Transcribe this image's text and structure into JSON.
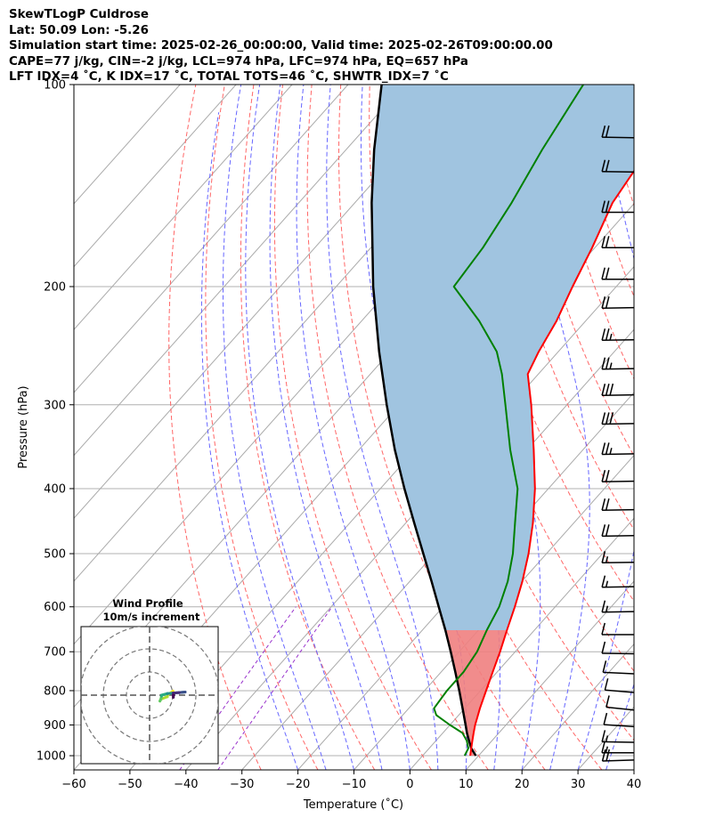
{
  "header": {
    "line1": "SkewTLogP Culdrose",
    "line2": "Lat: 50.09   Lon: -5.26",
    "line3": "Simulation start time: 2025-02-26_00:00:00, Valid time: 2025-02-26T09:00:00.00",
    "line4": "CAPE=77 j/kg, CIN=-2 j/kg, LCL=974 hPa, LFC=974 hPa, EQ=657 hPa",
    "line5": "LFT IDX=4 ˚C, K IDX=17 ˚C, TOTAL TOTS=46 ˚C, SHWTR_IDX=7 ˚C"
  },
  "colors": {
    "temperature": "#ff0000",
    "dewpoint": "#008000",
    "parcel": "#000000",
    "cape_fill": "#a0c4e0",
    "cin_fill": "#f08080",
    "dry_adiabat": "#ff6666",
    "moist_adiabat": "#6666ff",
    "mixing_ratio": "#9933cc",
    "isotherm": "#aaaaaa"
  },
  "chart_data": {
    "type": "line",
    "title": "",
    "xlabel": "Temperature (˚C)",
    "ylabel": "Pressure (hPa)",
    "xlim": [
      -60,
      40
    ],
    "ylim": [
      1050,
      100
    ],
    "yscale": "log",
    "skew": true,
    "grid": true,
    "x_ticks": [
      "−60",
      "−50",
      "−40",
      "−30",
      "−20",
      "−10",
      "0",
      "10",
      "20",
      "30",
      "40"
    ],
    "y_ticks": [
      "100",
      "200",
      "300",
      "400",
      "500",
      "600",
      "700",
      "800",
      "900",
      "1000"
    ],
    "series": [
      {
        "key": "temperature",
        "pressure": [
          1000,
          975,
          950,
          925,
          900,
          850,
          800,
          750,
          700,
          650,
          600,
          550,
          500,
          450,
          400,
          350,
          300,
          270,
          250,
          225,
          200,
          175,
          150,
          125,
          100
        ],
        "values": [
          8.5,
          7.5,
          6.5,
          5.5,
          4.5,
          2.7,
          1.0,
          -0.8,
          -2.7,
          -4.9,
          -7.2,
          -9.9,
          -13.2,
          -17.3,
          -22.4,
          -28.8,
          -36.4,
          -41.9,
          -43.5,
          -45.2,
          -47.8,
          -50.5,
          -54.0,
          -56.0,
          -58.0
        ]
      },
      {
        "key": "dewpoint",
        "pressure": [
          1000,
          975,
          950,
          925,
          900,
          870,
          850,
          800,
          750,
          700,
          650,
          600,
          550,
          500,
          450,
          400,
          350,
          300,
          270,
          250,
          225,
          200,
          175,
          150,
          125,
          100
        ],
        "values": [
          7.5,
          7.0,
          5.5,
          3.5,
          0.0,
          -4.0,
          -5.5,
          -6.0,
          -6.0,
          -6.8,
          -8.5,
          -10.0,
          -12.5,
          -16.0,
          -20.5,
          -25.5,
          -33.0,
          -41.0,
          -46.5,
          -51.0,
          -59.0,
          -69.0,
          -70.0,
          -72.0,
          -75.0,
          -78.0
        ]
      },
      {
        "key": "parcel",
        "pressure": [
          1000,
          975,
          950,
          925,
          900,
          850,
          800,
          750,
          700,
          650,
          600,
          550,
          500,
          450,
          400,
          350,
          300,
          250,
          200,
          150,
          125,
          100
        ],
        "values": [
          9.5,
          7.5,
          5.9,
          4.3,
          2.8,
          -0.4,
          -3.8,
          -7.5,
          -11.5,
          -15.9,
          -20.8,
          -26.1,
          -32.0,
          -38.5,
          -45.7,
          -53.6,
          -62.2,
          -72.0,
          -83.4,
          -97.0,
          -105.0,
          -114.0
        ]
      }
    ],
    "wind_barbs": {
      "pressure": [
        1015,
        990,
        955,
        905,
        855,
        805,
        755,
        705,
        660,
        610,
        560,
        515,
        470,
        430,
        390,
        355,
        320,
        290,
        265,
        240,
        215,
        195,
        175,
        155,
        135,
        120
      ],
      "speed_kt": [
        20,
        15,
        15,
        10,
        10,
        10,
        10,
        10,
        10,
        15,
        15,
        15,
        20,
        20,
        20,
        25,
        30,
        30,
        25,
        25,
        20,
        20,
        20,
        20,
        20,
        20
      ],
      "direction_deg": [
        260,
        270,
        275,
        290,
        300,
        295,
        285,
        275,
        270,
        265,
        265,
        265,
        265,
        265,
        265,
        265,
        265,
        265,
        265,
        265,
        265,
        270,
        270,
        270,
        275,
        275
      ]
    },
    "inset": {
      "title": "Wind Profile",
      "subtitle": "10m/s increment",
      "rings_ms": [
        10,
        20,
        30
      ]
    }
  }
}
